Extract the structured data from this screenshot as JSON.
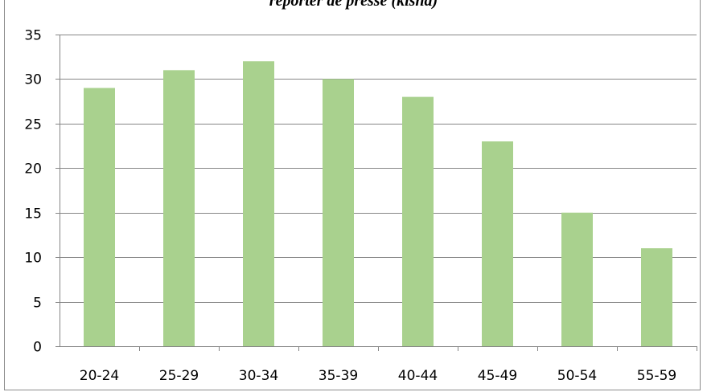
{
  "chart_data": {
    "type": "bar",
    "title": "reporter de presse (kisha)",
    "xlabel": "",
    "ylabel": "",
    "categories": [
      "20-24",
      "25-29",
      "30-34",
      "35-39",
      "40-44",
      "45-49",
      "50-54",
      "55-59"
    ],
    "values": [
      29,
      31,
      32,
      30,
      28,
      23,
      15,
      11
    ],
    "ylim": [
      0,
      35
    ],
    "yticks": [
      "0",
      "5",
      "10",
      "15",
      "20",
      "25",
      "30",
      "35"
    ],
    "grid": true,
    "legend": "none",
    "colors": {
      "bar": "#a9d18e",
      "grid": "#868686",
      "axis": "#868686"
    }
  }
}
